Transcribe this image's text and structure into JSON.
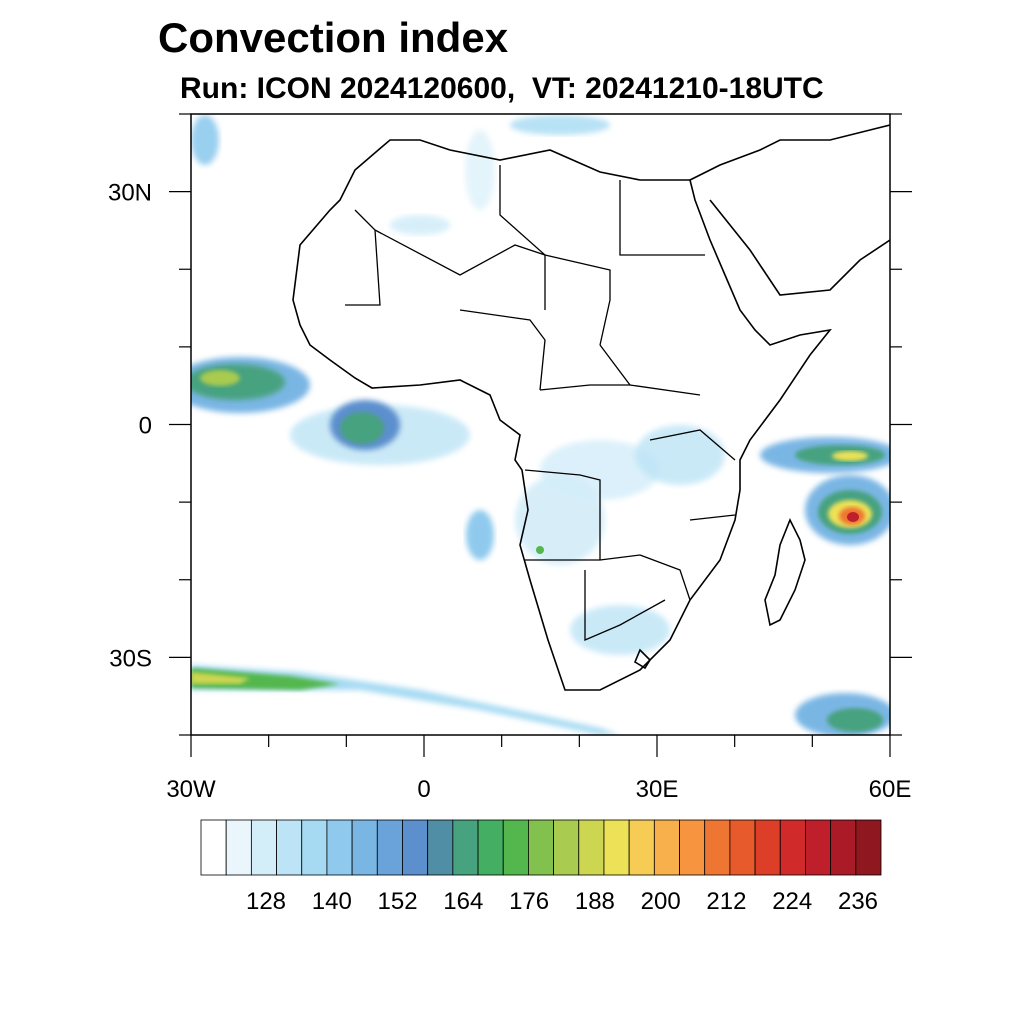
{
  "title": "Convection index",
  "subtitle": "Run: ICON 2024120600,  VT: 20241210-18UTC",
  "map": {
    "projection": "lat-lon",
    "lon_range": [
      -30,
      60
    ],
    "lat_range": [
      -40,
      40
    ],
    "x_tick_labels": [
      "30W",
      "0",
      "30E",
      "60E"
    ],
    "y_tick_labels": [
      "30N",
      "0",
      "30S"
    ]
  },
  "colorbar": {
    "labels": [
      "128",
      "140",
      "152",
      "164",
      "176",
      "188",
      "200",
      "212",
      "224",
      "236"
    ],
    "colors": [
      "#ffffff",
      "#eaf6fc",
      "#d3edf9",
      "#bde4f6",
      "#a6daf3",
      "#8fcaee",
      "#7ab6e4",
      "#6aa3d9",
      "#5b8fcd",
      "#4f8ea4",
      "#47a27f",
      "#44ae62",
      "#53b74e",
      "#82c14d",
      "#a9cb4f",
      "#cdd651",
      "#ede157",
      "#f7cc55",
      "#f7b04b",
      "#f69440",
      "#ef7632",
      "#e65a2b",
      "#dc3e28",
      "#d02a2b",
      "#bf1f2b",
      "#ab1a27",
      "#8f1820"
    ]
  }
}
